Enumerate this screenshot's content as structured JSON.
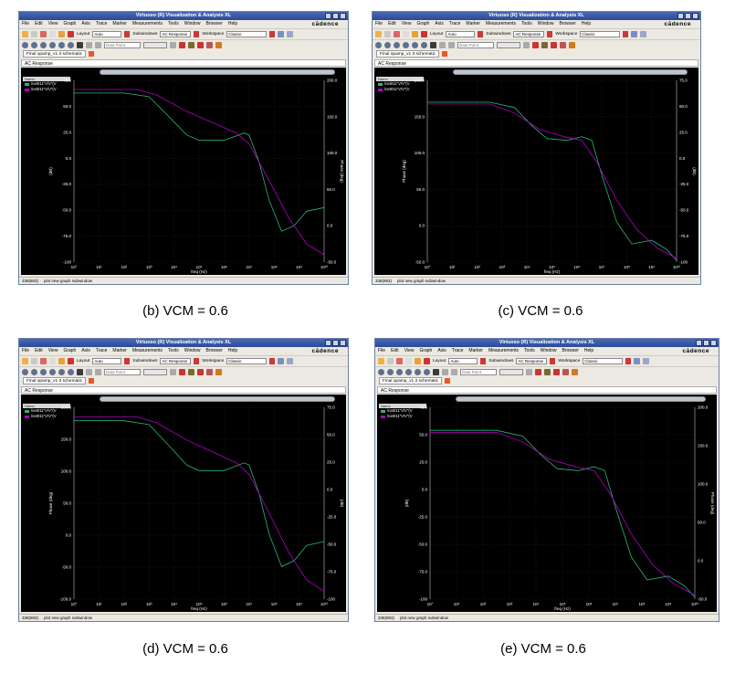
{
  "window": {
    "title": "Virtuoso (R) Visualization & Analysis XL",
    "brand": "cādence",
    "menus": [
      "File",
      "Edit",
      "View",
      "Graph",
      "Axis",
      "Trace",
      "Marker",
      "Measurements",
      "Tools",
      "Window",
      "Browser",
      "Help"
    ],
    "layout_label": "Layout",
    "layout_value": "Auto",
    "subwindows_label": "Subwindows",
    "subwindows_value": "AC Response",
    "workspace_label": "Workspace",
    "workspace_value": "Classic",
    "datapoint_placeholder": "Data Point",
    "tab_label": "Final opamp_v1 3 schematic",
    "subwindow_title": "AC Response",
    "legend_header": "Name",
    "trace_names": [
      "/net011\"V/V\"(V",
      "/net011\"V/V\"(V"
    ],
    "xlabel": "freq (Hz)",
    "status_left": "338(883)",
    "status_right": "plot new graph subwindow"
  },
  "colors": {
    "gain_trace": "#2bb673",
    "phase_trace": "#b400c8",
    "plot_bg": "#000000",
    "titlebar": "#2b4a96"
  },
  "panels": [
    {
      "caption": "",
      "left_axis_label": "(dB)",
      "right_axis_label": "Phase (deg)",
      "left_ticks": [
        "75.0",
        "50.0",
        "25.0",
        "0.0",
        "-25.0",
        "-50.0",
        "-75.0",
        "-100"
      ],
      "right_ticks": [
        "200.0",
        "150.0",
        "100.0",
        "50.0",
        "0.0",
        "-50.0"
      ],
      "x_ticks": [
        "10°",
        "10¹",
        "10²",
        "10³",
        "10⁴",
        "10⁵",
        "10⁶",
        "10⁷",
        "10⁸",
        "10⁹",
        "10¹⁰"
      ]
    },
    {
      "caption": "",
      "left_axis_label": "Phase (deg)",
      "right_axis_label": "(dB)",
      "left_ticks": [
        "200.0",
        "150.0",
        "100.0",
        "50.0",
        "0.0",
        "-50.0"
      ],
      "right_ticks": [
        "75.0",
        "50.0",
        "25.0",
        "0.0",
        "-25.0",
        "-50.0",
        "-75.0",
        "-100"
      ],
      "x_ticks": [
        "10°",
        "10¹",
        "10²",
        "10³",
        "10⁴",
        "10⁵",
        "10⁶",
        "10⁷",
        "10⁸",
        "10⁹",
        "10¹⁰"
      ]
    },
    {
      "caption": "(b) VCM = 0.6",
      "left_axis_label": "Phase (deg)",
      "right_axis_label": "(dB)",
      "left_ticks": [
        "200.0",
        "150.0",
        "100.0",
        "50.0",
        "0.0",
        "-50.0",
        "-100.0"
      ],
      "right_ticks": [
        "75.0",
        "50.0",
        "25.0",
        "0.0",
        "-25.0",
        "-50.0",
        "-75.0",
        "-100"
      ],
      "x_ticks": [
        "10°",
        "10¹",
        "10²",
        "10³",
        "10⁴",
        "10⁵",
        "10⁶",
        "10⁷",
        "10⁸",
        "10⁹",
        "10¹⁰"
      ]
    },
    {
      "caption": "(c) VCM = 0.6",
      "left_axis_label": "(dB)",
      "right_axis_label": "Phase (deg)",
      "left_ticks": [
        "75.0",
        "50.0",
        "25.0",
        "0.0",
        "-25.0",
        "-50.0",
        "-75.0",
        "-100"
      ],
      "right_ticks": [
        "200.0",
        "150.0",
        "100.0",
        "50.0",
        "0.0",
        "-50.0"
      ],
      "x_ticks": [
        "10°",
        "10¹",
        "10²",
        "10³",
        "10⁴",
        "10⁵",
        "10⁶",
        "10⁷",
        "10⁸",
        "10⁹",
        "10¹⁰"
      ]
    }
  ],
  "captions": [
    "(b) VCM = 0.6",
    "(c) VCM = 0.6",
    "(d) VCM = 0.6",
    "(e) VCM = 0.6"
  ]
}
